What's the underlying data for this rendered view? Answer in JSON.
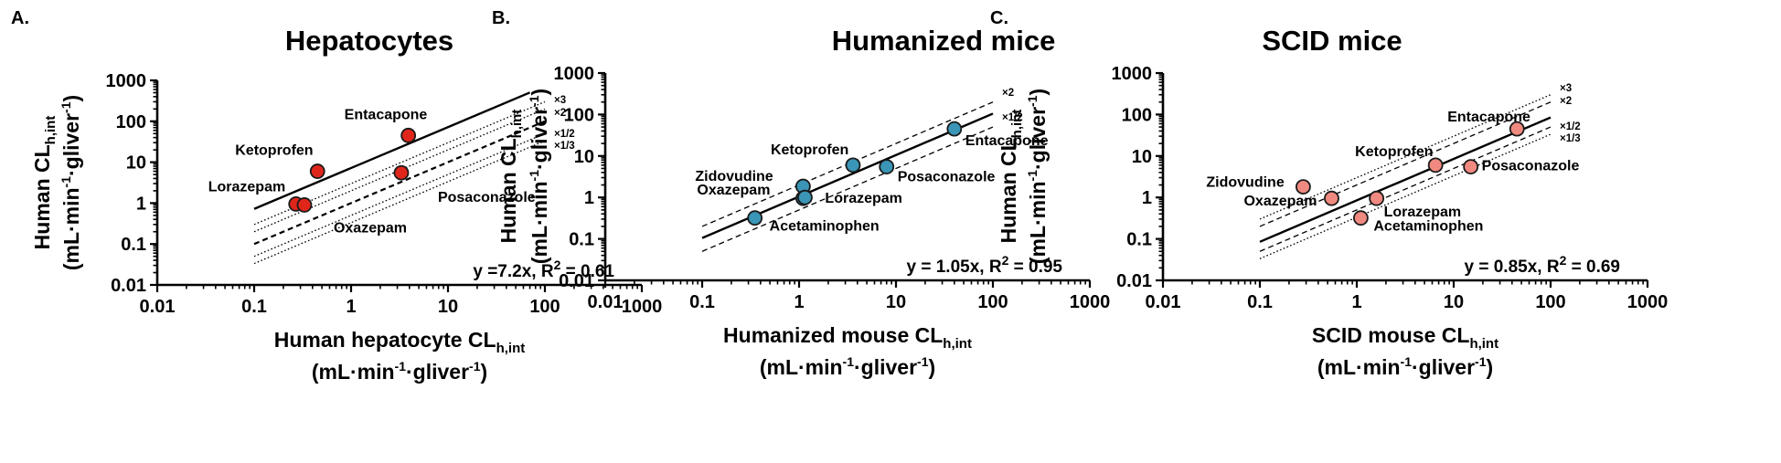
{
  "panels": [
    {
      "letter": "A.",
      "title": "Hepatocytes",
      "x_title": {
        "main": "Human hepatocyte CL",
        "sub": "h,int"
      },
      "x_unit": {
        "a": "(mL·min",
        "sup1": "-1",
        "b": "·gliver",
        "sup2": "-1",
        "c": ")"
      },
      "y_title": {
        "main": "Human CL",
        "sub": "h,int"
      },
      "y_unit": {
        "a": "(mL·min",
        "sup1": "-1",
        "b": "·gliver",
        "sup2": "-1",
        "c": ")"
      },
      "equation": {
        "a": "y =7.2x, R",
        "sup": "2",
        "b": " = 0.61"
      },
      "fold_labels": [
        "×3",
        "×2",
        "×1/2",
        "×1/3"
      ]
    },
    {
      "letter": "B.",
      "title": "Humanized mice",
      "x_title": {
        "main": "Humanized mouse CL",
        "sub": "h,int"
      },
      "x_unit": {
        "a": "(mL·min",
        "sup1": "-1",
        "b": "·gliver",
        "sup2": "-1",
        "c": ")"
      },
      "y_title": {
        "main": "Human CL",
        "sub": "h,int"
      },
      "y_unit": {
        "a": "(mL·min",
        "sup1": "-1",
        "b": "·gliver",
        "sup2": "-1",
        "c": ")"
      },
      "equation": {
        "a": "y = 1.05x, R",
        "sup": "2",
        "b": " = 0.95"
      },
      "fold_labels": [
        "×2",
        "×1/2"
      ]
    },
    {
      "letter": "C.",
      "title": "SCID mice",
      "x_title": {
        "main": "SCID mouse CL",
        "sub": "h,int"
      },
      "x_unit": {
        "a": "(mL·min",
        "sup1": "-1",
        "b": "·gliver",
        "sup2": "-1",
        "c": ")"
      },
      "y_title": {
        "main": "Human CL",
        "sub": "h,int"
      },
      "y_unit": {
        "a": "(mL·min",
        "sup1": "-1",
        "b": "·gliver",
        "sup2": "-1",
        "c": ")"
      },
      "equation": {
        "a": "y = 0.85x, R",
        "sup": "2",
        "b": " = 0.69"
      },
      "fold_labels": [
        "×3",
        "×2",
        "×1/2",
        "×1/3"
      ]
    }
  ],
  "chart_data": [
    {
      "type": "scatter",
      "title": "Hepatocytes",
      "xlabel": "Human hepatocyte CLh,int (mL·min-1·gliver-1)",
      "ylabel": "Human CLh,int (mL·min-1·gliver-1)",
      "xscale": "log",
      "yscale": "log",
      "xlim": [
        0.01,
        1000
      ],
      "ylim": [
        0.01,
        1000
      ],
      "x_ticks": [
        "0.01",
        "0.1",
        "1",
        "10",
        "100",
        "1000"
      ],
      "y_ticks": [
        "0.01",
        "0.1",
        "1",
        "10",
        "100",
        "1000"
      ],
      "point_color": "#e0261b",
      "regression_slope": 7.2,
      "regression_x_range": [
        0.1,
        70
      ],
      "fold_lines": [
        {
          "label": "×3",
          "factor": 3,
          "style": "dotted"
        },
        {
          "label": "×2",
          "factor": 2,
          "style": "dotted"
        },
        {
          "label": "",
          "factor": 1,
          "style": "dashed"
        },
        {
          "label": "×1/2",
          "factor": 0.5,
          "style": "dotted"
        },
        {
          "label": "×1/3",
          "factor": 0.3333,
          "style": "dotted"
        }
      ],
      "points": [
        {
          "name": "Entacapone",
          "x": 3.9,
          "y": 45
        },
        {
          "name": "Ketoprofen",
          "x": 0.45,
          "y": 6
        },
        {
          "name": "Posaconazole",
          "x": 3.3,
          "y": 5.5
        },
        {
          "name": "Lorazepam",
          "x": 0.27,
          "y": 0.95
        },
        {
          "name": "Oxazepam",
          "x": 0.33,
          "y": 0.9
        }
      ]
    },
    {
      "type": "scatter",
      "title": "Humanized mice",
      "xlabel": "Humanized mouse CLh,int (mL·min-1·gliver-1)",
      "ylabel": "Human CLh,int (mL·min-1·gliver-1)",
      "xscale": "log",
      "yscale": "log",
      "xlim": [
        0.01,
        1000
      ],
      "ylim": [
        0.01,
        1000
      ],
      "x_ticks": [
        "0.01",
        "0.1",
        "1",
        "10",
        "100",
        "1000"
      ],
      "y_ticks": [
        "0.01",
        "0.1",
        "1",
        "10",
        "100",
        "1000"
      ],
      "point_color": "#3a95b6",
      "regression_slope": 1.05,
      "regression_x_range": [
        0.1,
        100
      ],
      "fold_lines": [
        {
          "label": "×2",
          "factor": 2,
          "style": "dashed"
        },
        {
          "label": "×1/2",
          "factor": 0.5,
          "style": "dashed"
        }
      ],
      "points": [
        {
          "name": "Entacapone",
          "x": 40,
          "y": 45
        },
        {
          "name": "Ketoprofen",
          "x": 3.6,
          "y": 6
        },
        {
          "name": "Posaconazole",
          "x": 8,
          "y": 5.5
        },
        {
          "name": "Zidovudine",
          "x": 1.1,
          "y": 1.85
        },
        {
          "name": "Oxazepam",
          "x": 1.1,
          "y": 0.95
        },
        {
          "name": "Lorazepam",
          "x": 1.15,
          "y": 1.0
        },
        {
          "name": "Acetaminophen",
          "x": 0.35,
          "y": 0.32
        }
      ]
    },
    {
      "type": "scatter",
      "title": "SCID mice",
      "xlabel": "SCID mouse CLh,int (mL·min-1·gliver-1)",
      "ylabel": "Human CLh,int (mL·min-1·gliver-1)",
      "xscale": "log",
      "yscale": "log",
      "xlim": [
        0.01,
        1000
      ],
      "ylim": [
        0.01,
        1000
      ],
      "x_ticks": [
        "0.01",
        "0.1",
        "1",
        "10",
        "100",
        "1000"
      ],
      "y_ticks": [
        "0.01",
        "0.1",
        "1",
        "10",
        "100",
        "1000"
      ],
      "point_color": "#f08a80",
      "regression_slope": 0.85,
      "regression_x_range": [
        0.1,
        100
      ],
      "fold_lines": [
        {
          "label": "×3",
          "factor": 3,
          "style": "dotted"
        },
        {
          "label": "×2",
          "factor": 2,
          "style": "dashed"
        },
        {
          "label": "×1/2",
          "factor": 0.5,
          "style": "dashed"
        },
        {
          "label": "×1/3",
          "factor": 0.3333,
          "style": "dotted"
        }
      ],
      "points": [
        {
          "name": "Entacapone",
          "x": 45,
          "y": 45
        },
        {
          "name": "Ketoprofen",
          "x": 6.5,
          "y": 6
        },
        {
          "name": "Posaconazole",
          "x": 15,
          "y": 5.5
        },
        {
          "name": "Zidovudine",
          "x": 0.28,
          "y": 1.8
        },
        {
          "name": "Oxazepam",
          "x": 0.55,
          "y": 0.95
        },
        {
          "name": "Lorazepam",
          "x": 1.6,
          "y": 0.95
        },
        {
          "name": "Acetaminophen",
          "x": 1.1,
          "y": 0.32
        }
      ]
    }
  ]
}
